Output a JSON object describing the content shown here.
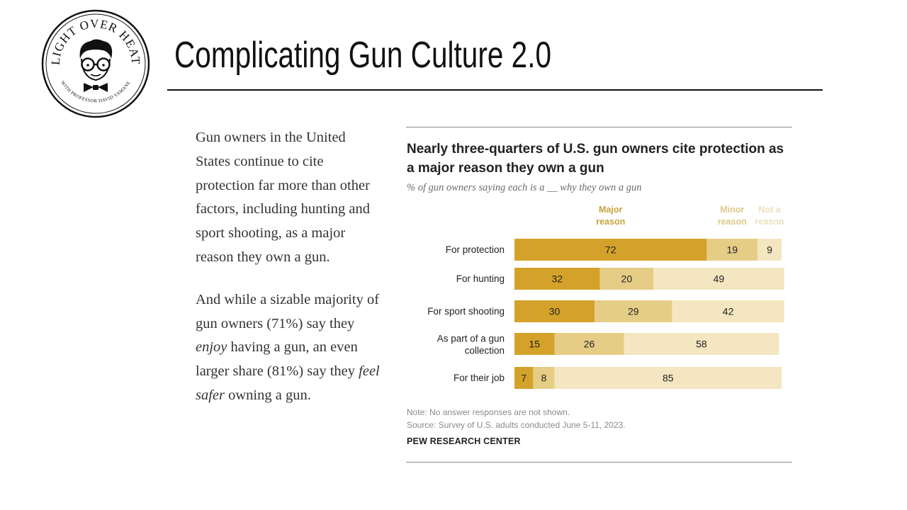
{
  "logo": {
    "arc_text": "LIGHT OVER HEAT",
    "sub_text": "WITH PROFESSOR DAVID YAMANE"
  },
  "slide": {
    "title": "Complicating Gun Culture 2.0",
    "paragraph1": "Gun owners in the United States continue to cite protection far more than other factors, including hunting and sport shooting, as a major reason they own a gun.",
    "paragraph2": {
      "pre": "And while a sizable majority of gun owners (71%) say they ",
      "em1": "enjoy",
      "mid": " having a gun, an even larger share (81%) say they ",
      "em2": "feel safer",
      "post": " owning a gun."
    }
  },
  "chart_data": {
    "type": "bar",
    "orientation": "horizontal",
    "stacked": true,
    "title": "Nearly three-quarters of U.S. gun owners cite protection as a major reason they own a gun",
    "subtitle": "% of gun owners saying each is a __ why they own a gun",
    "categories": [
      "For protection",
      "For hunting",
      "For sport shooting",
      "As part of a gun collection",
      "For their job"
    ],
    "series": [
      {
        "name": "Major reason",
        "values": [
          72,
          32,
          30,
          15,
          7
        ],
        "color": "#d4a22a",
        "label_color": "#c8a23c"
      },
      {
        "name": "Minor reason",
        "values": [
          19,
          20,
          29,
          26,
          8
        ],
        "color": "#e6cd86",
        "label_color": "#dcc889"
      },
      {
        "name": "Not a reason",
        "values": [
          9,
          49,
          42,
          58,
          85
        ],
        "color": "#f3e6c0",
        "label_color": "#ece0ba"
      }
    ],
    "xlim": [
      0,
      100
    ],
    "legend": "top",
    "grid": false,
    "note": "Note: No answer responses are not shown.",
    "source": "Source: Survey of U.S. adults conducted June 5-11, 2023.",
    "source_org": "PEW RESEARCH CENTER"
  }
}
